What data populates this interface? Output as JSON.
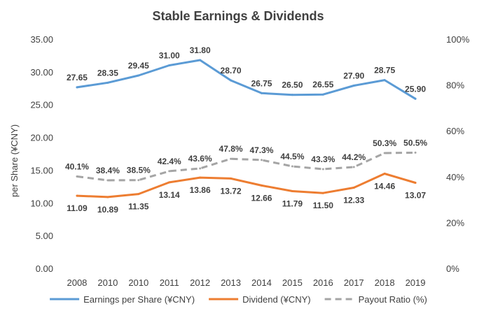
{
  "chart_data": {
    "type": "line",
    "title": "Stable Earnings & Dividends",
    "ylabel": "per Share (¥CNY)",
    "categories": [
      "2008",
      "2010",
      "2010",
      "2011",
      "2012",
      "2013",
      "2014",
      "2015",
      "2016",
      "2017",
      "2018",
      "2019"
    ],
    "ylim": [
      0,
      35
    ],
    "yticks": [
      "0.00",
      "5.00",
      "10.00",
      "15.00",
      "20.00",
      "25.00",
      "30.00",
      "35.00"
    ],
    "y2lim": [
      0,
      100
    ],
    "y2ticks": [
      "0%",
      "20%",
      "40%",
      "60%",
      "80%",
      "100%"
    ],
    "grid": false,
    "legend_position": "bottom",
    "series": [
      {
        "name": "Earnings per Share  (¥CNY)",
        "axis": "left",
        "color": "#5b9bd5",
        "style": "solid",
        "values": [
          27.65,
          28.35,
          29.45,
          31.0,
          31.8,
          28.7,
          26.75,
          26.5,
          26.55,
          27.9,
          28.75,
          25.9
        ],
        "labels": [
          "27.65",
          "28.35",
          "29.45",
          "31.00",
          "31.80",
          "28.70",
          "26.75",
          "26.50",
          "26.55",
          "27.90",
          "28.75",
          "25.90"
        ],
        "label_position": "above"
      },
      {
        "name": "Dividend (¥CNY)",
        "axis": "left",
        "color": "#ed7d31",
        "style": "solid",
        "values": [
          11.09,
          10.89,
          11.35,
          13.14,
          13.86,
          13.72,
          12.66,
          11.79,
          11.5,
          12.33,
          14.46,
          13.07
        ],
        "labels": [
          "11.09",
          "10.89",
          "11.35",
          "13.14",
          "13.86",
          "13.72",
          "12.66",
          "11.79",
          "11.50",
          "12.33",
          "14.46",
          "13.07"
        ],
        "label_position": "below"
      },
      {
        "name": "Payout Ratio (%)",
        "axis": "right",
        "color": "#a5a5a5",
        "style": "dashed",
        "values": [
          40.1,
          38.4,
          38.5,
          42.4,
          43.6,
          47.8,
          47.3,
          44.5,
          43.3,
          44.2,
          50.3,
          50.5
        ],
        "labels": [
          "40.1%",
          "38.4%",
          "38.5%",
          "42.4%",
          "43.6%",
          "47.8%",
          "47.3%",
          "44.5%",
          "43.3%",
          "44.2%",
          "50.3%",
          "50.5%"
        ],
        "label_position": "above"
      }
    ]
  }
}
